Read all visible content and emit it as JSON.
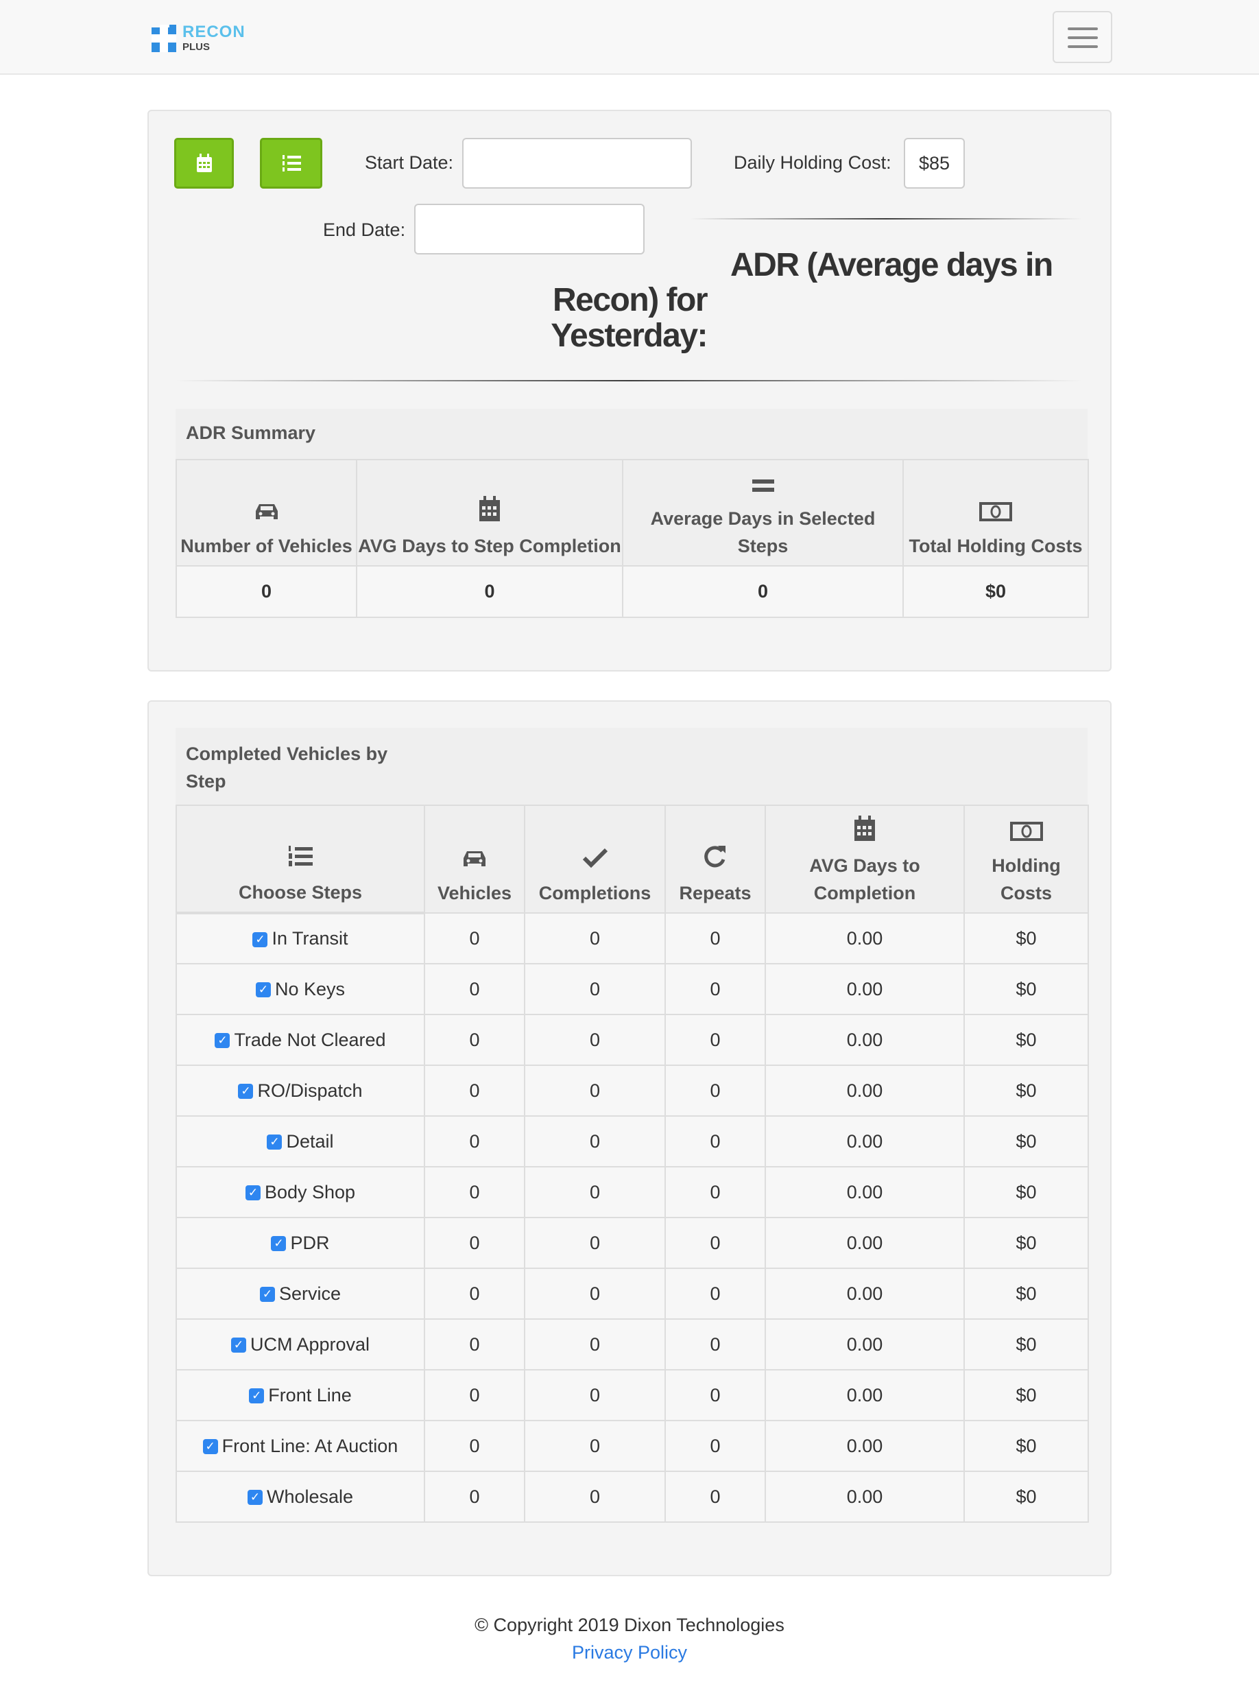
{
  "nav": {
    "logo_line1": "RECON",
    "logo_line2": "PLUS"
  },
  "filters": {
    "start_date_label": "Start Date:",
    "start_date_value": "",
    "end_date_label": "End Date:",
    "end_date_value": "",
    "daily_cost_label": "Daily Holding Cost:",
    "daily_cost_value": "$85"
  },
  "heading": {
    "line1": "ADR (Average days in",
    "line2": "Recon) for",
    "line3": "Yesterday:"
  },
  "summary": {
    "title": "ADR Summary",
    "columns": [
      {
        "label": "Number of Vehicles",
        "icon": "car-icon"
      },
      {
        "label": "AVG Days to Step Completion",
        "icon": "calendar-icon"
      },
      {
        "label": "Average Days in Selected Steps",
        "icon": "equals-icon"
      },
      {
        "label": "Total Holding Costs",
        "icon": "money-icon"
      }
    ],
    "values": [
      "0",
      "0",
      "0",
      "$0"
    ]
  },
  "steps": {
    "title": "Completed Vehicles by Step",
    "columns": [
      {
        "label": "Choose Steps",
        "icon": "list-ol-icon"
      },
      {
        "label": "Vehicles",
        "icon": "car-icon"
      },
      {
        "label": "Completions",
        "icon": "check-icon"
      },
      {
        "label": "Repeats",
        "icon": "repeat-icon"
      },
      {
        "label": "AVG Days to Completion",
        "icon": "calendar-icon"
      },
      {
        "label": "Holding Costs",
        "icon": "money-icon"
      }
    ],
    "rows": [
      {
        "step": "In Transit",
        "checked": true,
        "vehicles": "0",
        "completions": "0",
        "repeats": "0",
        "avg_days": "0.00",
        "holding": "$0"
      },
      {
        "step": "No Keys",
        "checked": true,
        "vehicles": "0",
        "completions": "0",
        "repeats": "0",
        "avg_days": "0.00",
        "holding": "$0"
      },
      {
        "step": "Trade Not Cleared",
        "checked": true,
        "vehicles": "0",
        "completions": "0",
        "repeats": "0",
        "avg_days": "0.00",
        "holding": "$0"
      },
      {
        "step": "RO/Dispatch",
        "checked": true,
        "vehicles": "0",
        "completions": "0",
        "repeats": "0",
        "avg_days": "0.00",
        "holding": "$0"
      },
      {
        "step": "Detail",
        "checked": true,
        "vehicles": "0",
        "completions": "0",
        "repeats": "0",
        "avg_days": "0.00",
        "holding": "$0"
      },
      {
        "step": "Body Shop",
        "checked": true,
        "vehicles": "0",
        "completions": "0",
        "repeats": "0",
        "avg_days": "0.00",
        "holding": "$0"
      },
      {
        "step": "PDR",
        "checked": true,
        "vehicles": "0",
        "completions": "0",
        "repeats": "0",
        "avg_days": "0.00",
        "holding": "$0"
      },
      {
        "step": "Service",
        "checked": true,
        "vehicles": "0",
        "completions": "0",
        "repeats": "0",
        "avg_days": "0.00",
        "holding": "$0"
      },
      {
        "step": "UCM Approval",
        "checked": true,
        "vehicles": "0",
        "completions": "0",
        "repeats": "0",
        "avg_days": "0.00",
        "holding": "$0"
      },
      {
        "step": "Front Line",
        "checked": true,
        "vehicles": "0",
        "completions": "0",
        "repeats": "0",
        "avg_days": "0.00",
        "holding": "$0"
      },
      {
        "step": "Front Line: At Auction",
        "checked": true,
        "vehicles": "0",
        "completions": "0",
        "repeats": "0",
        "avg_days": "0.00",
        "holding": "$0"
      },
      {
        "step": "Wholesale",
        "checked": true,
        "vehicles": "0",
        "completions": "0",
        "repeats": "0",
        "avg_days": "0.00",
        "holding": "$0"
      }
    ]
  },
  "footer": {
    "copyright": "© Copyright 2019 Dixon Technologies",
    "privacy": "Privacy Policy"
  },
  "colors": {
    "accent_green": "#7ec51f",
    "link": "#2a7ae2",
    "checkbox": "#2e86f0"
  }
}
